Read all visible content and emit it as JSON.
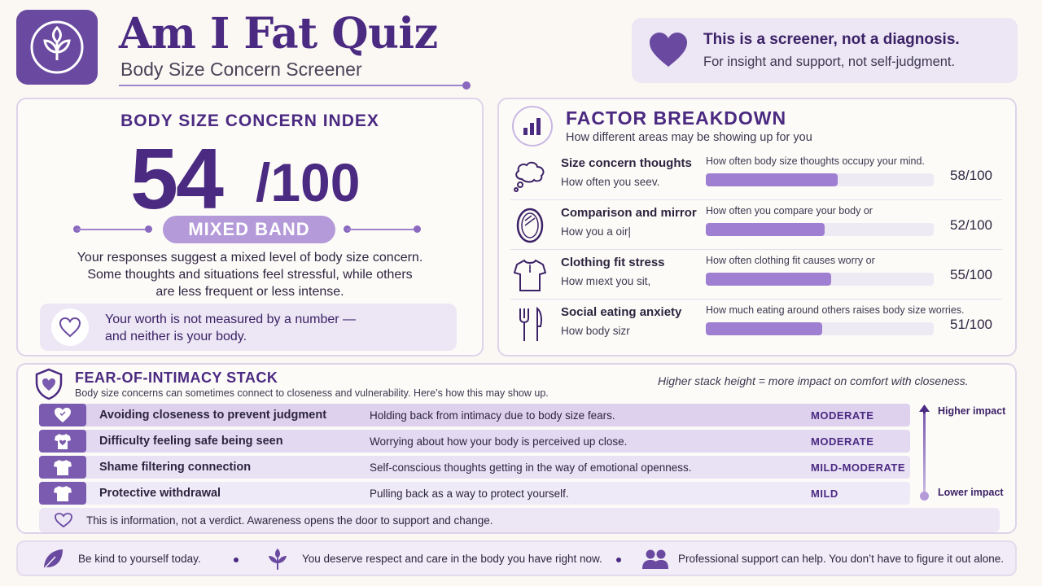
{
  "header": {
    "title": "Am I Fat Quiz",
    "subtitle": "Body Size Concern Screener",
    "logo_icon": "sprout-icon"
  },
  "notice": {
    "heading": "This is a screener, not a diagnosis.",
    "text": "For insight and support, not self-judgment."
  },
  "index": {
    "label": "BODY SIZE CONCERN INDEX",
    "score": "54",
    "max": "/100",
    "band": "MIXED BAND",
    "description_lines": [
      "Your responses suggest a mixed level of body size concern.",
      "Some thoughts and situations feel stressful, while others",
      "are less frequent or less intense."
    ],
    "worth_lines": [
      "Your worth is not measured by a number —",
      "and neither is your body."
    ]
  },
  "factors": {
    "heading": "FACTOR BREAKDOWN",
    "subheading": "How different areas may be showing up for you",
    "items": [
      {
        "name": "Size concern thoughts",
        "hint": "How often you seev.",
        "question": "How often body size thoughts occupy your mind.",
        "score": 58,
        "score_label": "58",
        "max_label": "/100",
        "icon": "thought-bubble-icon"
      },
      {
        "name": "Comparison and mirror",
        "hint": "How you a oir|",
        "question": "How often you compare your body or",
        "score": 52,
        "score_label": "52",
        "max_label": "/100",
        "icon": "mirror-icon"
      },
      {
        "name": "Clothing fit stress",
        "hint": "How mıext you sit,",
        "question": "How often clothing fit causes worry or",
        "score": 55,
        "score_label": "55",
        "max_label": "/100",
        "icon": "shirt-icon"
      },
      {
        "name": "Social eating anxiety",
        "hint": "How body sizr",
        "question": "How much eating around others raises body size worries.",
        "score": 51,
        "score_label": "51",
        "max_label": "/100",
        "icon": "fork-knife-icon"
      }
    ]
  },
  "stack": {
    "heading": "FEAR-OF-INTIMACY STACK",
    "subheading": "Body size concerns can sometimes connect to closeness and vulnerability. Here’s how this may show up.",
    "note": "Higher stack height = more impact on comfort with closeness.",
    "scale_top": "Higher impact",
    "scale_bottom": "Lower impact",
    "rows": [
      {
        "name": "Avoiding closeness to prevent judgment",
        "desc": "Holding back from intimacy due to body size fears.",
        "level": "MODERATE",
        "bg": "#ddd1ee",
        "icon": "heart-hands-icon"
      },
      {
        "name": "Difficulty feeling safe being seen",
        "desc": "Worrying about how your body is perceived up close.",
        "level": "MODERATE",
        "bg": "#e3d9f1",
        "icon": "shirt-heart-icon"
      },
      {
        "name": "Shame filtering connection",
        "desc": "Self-conscious thoughts getting in the way of emotional openness.",
        "level": "MILD-MODERATE",
        "bg": "#e9e2f4",
        "icon": "shirt-icon"
      },
      {
        "name": "Protective withdrawal",
        "desc": "Pulling back as a way to protect yourself.",
        "level": "MILD",
        "bg": "#efeaf7",
        "icon": "shirt-icon"
      }
    ],
    "info": "This is information, not a verdict. Awareness opens the door to support and change."
  },
  "footer": {
    "items": [
      {
        "text": "Be kind to yourself today.",
        "icon": "leaf-icon"
      },
      {
        "text": "You deserve respect and care in the body you have right now.",
        "icon": "sprout-icon"
      },
      {
        "text": "Professional support can help. You don’t have to figure it out alone.",
        "icon": "people-icon"
      }
    ]
  },
  "colors": {
    "brand": "#4b2a82",
    "accent": "#9f7fd1",
    "band_pill": "#b49ad9"
  }
}
